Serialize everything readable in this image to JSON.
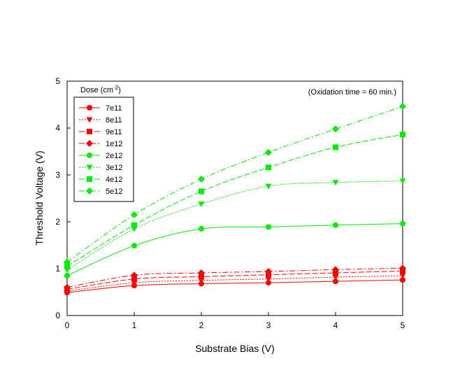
{
  "chart_data": {
    "type": "line",
    "title": "",
    "xlabel": "Substrate Bias (V)",
    "ylabel": "Threshold Voltage (V)",
    "xlim": [
      0,
      5
    ],
    "ylim": [
      0,
      5
    ],
    "xticks": [
      0,
      1,
      2,
      3,
      4,
      5
    ],
    "yticks": [
      0,
      1,
      2,
      3,
      4,
      5
    ],
    "grid": false,
    "annotation": "(Oxidation time = 60 min.)",
    "legend": {
      "title_prefix": "Dose (cm",
      "title_superscript": "-2",
      "title_suffix": ")",
      "placement": "top-left"
    },
    "x": [
      0,
      1,
      2,
      3,
      4,
      5
    ],
    "series": [
      {
        "name": "7e11",
        "color": "#ff0000",
        "marker": "circle",
        "dash": "solid",
        "values": [
          0.49,
          0.64,
          0.68,
          0.7,
          0.73,
          0.76
        ]
      },
      {
        "name": "8e11",
        "color": "#ff0000",
        "marker": "tri-down",
        "dash": "dotted",
        "values": [
          0.52,
          0.7,
          0.75,
          0.78,
          0.82,
          0.85
        ]
      },
      {
        "name": "9e11",
        "color": "#ff0000",
        "marker": "square",
        "dash": "dashed",
        "values": [
          0.56,
          0.78,
          0.83,
          0.87,
          0.91,
          0.95
        ]
      },
      {
        "name": "1e12",
        "color": "#ff0000",
        "marker": "diamond",
        "dash": "dashdot",
        "values": [
          0.6,
          0.86,
          0.91,
          0.94,
          0.98,
          1.01
        ]
      },
      {
        "name": "2e12",
        "color": "#00ee00",
        "marker": "circle",
        "dash": "solid",
        "values": [
          0.85,
          1.49,
          1.85,
          1.89,
          1.93,
          1.96
        ]
      },
      {
        "name": "3e12",
        "color": "#00ee00",
        "marker": "tri-down",
        "dash": "dotted",
        "values": [
          0.97,
          1.85,
          2.38,
          2.76,
          2.84,
          2.87
        ]
      },
      {
        "name": "4e12",
        "color": "#00ee00",
        "marker": "square",
        "dash": "dashed",
        "values": [
          1.05,
          1.93,
          2.65,
          3.16,
          3.59,
          3.86
        ]
      },
      {
        "name": "5e12",
        "color": "#00ee00",
        "marker": "diamond",
        "dash": "dashdot",
        "values": [
          1.14,
          2.15,
          2.91,
          3.48,
          3.98,
          4.46
        ]
      }
    ]
  }
}
